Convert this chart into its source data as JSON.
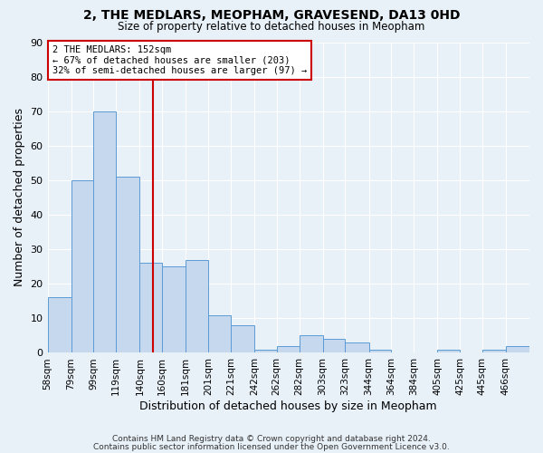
{
  "title": "2, THE MEDLARS, MEOPHAM, GRAVESEND, DA13 0HD",
  "subtitle": "Size of property relative to detached houses in Meopham",
  "xlabel": "Distribution of detached houses by size in Meopham",
  "ylabel": "Number of detached properties",
  "bar_color": "#c5d8ed",
  "bar_edge_color": "#5b9bd5",
  "background_color": "#e8f0f8",
  "grid_color": "#ffffff",
  "categories": [
    "58sqm",
    "79sqm",
    "99sqm",
    "119sqm",
    "140sqm",
    "160sqm",
    "181sqm",
    "201sqm",
    "221sqm",
    "242sqm",
    "262sqm",
    "282sqm",
    "303sqm",
    "323sqm",
    "344sqm",
    "364sqm",
    "384sqm",
    "405sqm",
    "425sqm",
    "445sqm",
    "466sqm"
  ],
  "values": [
    16,
    50,
    70,
    51,
    26,
    25,
    27,
    11,
    8,
    1,
    2,
    5,
    4,
    3,
    1,
    0,
    0,
    1,
    0,
    1,
    2
  ],
  "bin_edges": [
    58,
    79,
    99,
    119,
    140,
    160,
    181,
    201,
    221,
    242,
    262,
    282,
    303,
    323,
    344,
    364,
    384,
    405,
    425,
    445,
    466,
    487
  ],
  "ylim": [
    0,
    90
  ],
  "yticks": [
    0,
    10,
    20,
    30,
    40,
    50,
    60,
    70,
    80,
    90
  ],
  "vline_x": 152,
  "vline_color": "#cc0000",
  "annotation_line1": "2 THE MEDLARS: 152sqm",
  "annotation_line2": "← 67% of detached houses are smaller (203)",
  "annotation_line3": "32% of semi-detached houses are larger (97) →",
  "annotation_box_color": "#ffffff",
  "annotation_box_edge_color": "#cc0000",
  "footer_line1": "Contains HM Land Registry data © Crown copyright and database right 2024.",
  "footer_line2": "Contains public sector information licensed under the Open Government Licence v3.0."
}
